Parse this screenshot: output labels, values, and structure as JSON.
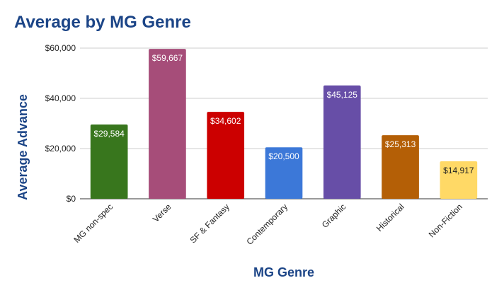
{
  "chart_data": {
    "type": "bar",
    "title": "Average by MG Genre",
    "xlabel": "MG Genre",
    "ylabel": "Average Advance",
    "categories": [
      "MG non-spec",
      "Verse",
      "SF & Fantasy",
      "Contemporary",
      "Graphic",
      "Historical",
      "Non-Fiction"
    ],
    "values": [
      29584,
      59667,
      34602,
      20500,
      45125,
      25313,
      14917
    ],
    "data_labels": [
      "$29,584",
      "$59,667",
      "$34,602",
      "$20,500",
      "$45,125",
      "$25,313",
      "$14,917"
    ],
    "colors": [
      "#38761d",
      "#a64d79",
      "#cc0000",
      "#3c78d8",
      "#674ea7",
      "#b45f06",
      "#ffd966"
    ],
    "ylim": [
      0,
      60000
    ],
    "yticks": [
      0,
      20000,
      40000,
      60000
    ],
    "ytick_labels": [
      "$0",
      "$20,000",
      "$40,000",
      "$60,000"
    ],
    "grid": true,
    "legend": "none"
  }
}
